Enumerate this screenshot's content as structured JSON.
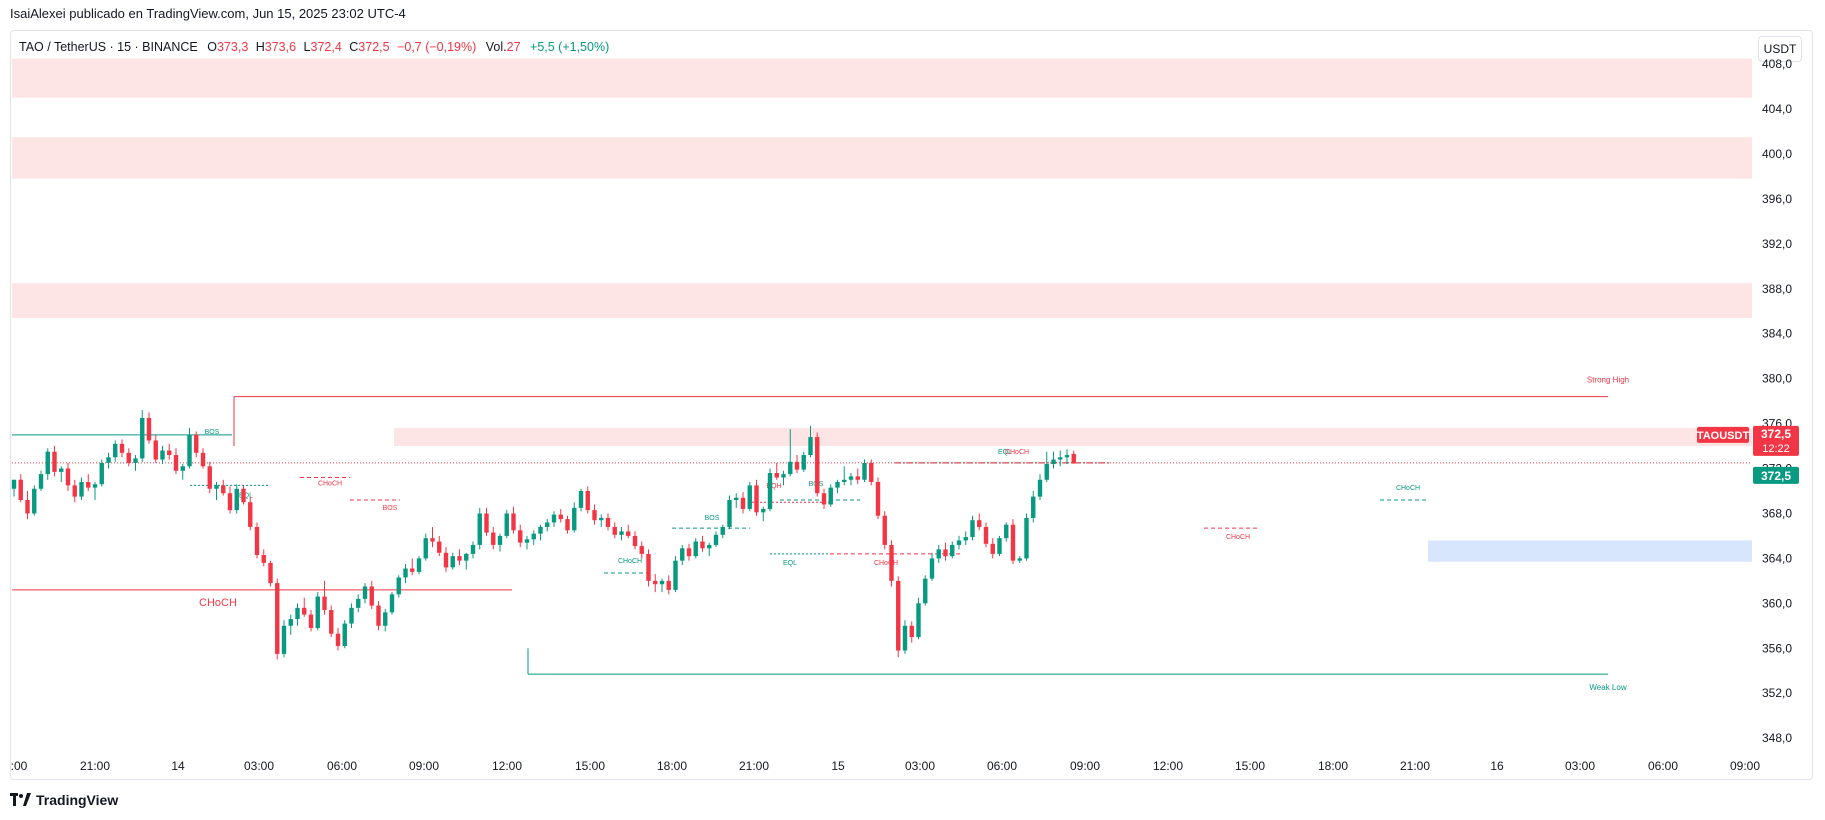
{
  "published_by": "IsaiAlexei publicado en TradingView.com, Jun 15, 2025 23:02 UTC-4",
  "legend": {
    "symbol": "TAO / TetherUS · 15 · BINANCE",
    "o_label": "O",
    "o_value": "373,3",
    "h_label": "H",
    "h_value": "373,6",
    "l_label": "L",
    "l_value": "372,4",
    "c_label": "C",
    "c_value": "372,5",
    "change": "−0,7 (−0,19%)",
    "vol_label": "Vol.",
    "vol_value": "27",
    "vol_change": "+5,5 (+1,50%)"
  },
  "currency_button": "USDT",
  "brand": "TradingView",
  "colors": {
    "up": "#089981",
    "down": "#f23645",
    "supply_zone": "#fde4e5",
    "demand_zone": "#d8e6fd"
  },
  "chart_data": {
    "type": "candlestick",
    "y_ticks": [
      "408,0",
      "404,0",
      "400,0",
      "396,0",
      "392,0",
      "388,0",
      "384,0",
      "380,0",
      "376,0",
      "372,0",
      "368,0",
      "364,0",
      "360,0",
      "356,0",
      "352,0",
      "348,0"
    ],
    "y_tick_values": [
      408,
      404,
      400,
      396,
      392,
      388,
      384,
      380,
      376,
      372,
      368,
      364,
      360,
      356,
      352,
      348
    ],
    "ylim": [
      346.5,
      410.5
    ],
    "x_ticks": [
      ":00",
      "21:00",
      "14",
      "03:00",
      "06:00",
      "09:00",
      "12:00",
      "15:00",
      "18:00",
      "21:00",
      "15",
      "03:00",
      "06:00",
      "09:00",
      "12:00",
      "15:00",
      "18:00",
      "21:00",
      "16",
      "03:00",
      "06:00",
      "09:00"
    ],
    "last_price_label": {
      "symbol": "TAOUSDT",
      "price": "372,5",
      "countdown": "12:22"
    },
    "last_price_marker": "372,5",
    "supply_zones": [
      {
        "low": 405.0,
        "high": 408.5
      },
      {
        "low": 397.8,
        "high": 401.5
      },
      {
        "low": 385.4,
        "high": 388.5
      },
      {
        "low": 374.0,
        "high": 375.6
      }
    ],
    "demand_zones": [
      {
        "low": 363.7,
        "high": 365.6
      }
    ],
    "annotations": [
      {
        "text": "Strong High",
        "price": 378.4
      },
      {
        "text": "Weak Low",
        "price": 353.7
      },
      {
        "text": "CHoCH",
        "price": 361.2
      },
      {
        "text": "BOS",
        "price": 375.0
      },
      {
        "text": "EQL",
        "price": 370.5
      },
      {
        "text": "CHoCH",
        "price": 371.2
      },
      {
        "text": "BOS",
        "price": 369.2
      },
      {
        "text": "CHoCH",
        "price": 362.7
      },
      {
        "text": "BOS",
        "price": 366.7
      },
      {
        "text": "EQH",
        "price": 369.0
      },
      {
        "text": "BOS",
        "price": 369.2
      },
      {
        "text": "EQL",
        "price": 364.4
      },
      {
        "text": "CHoCH",
        "price": 364.4
      },
      {
        "text": "EQL",
        "price": 372.5
      },
      {
        "text": "CHoCH",
        "price": 372.5
      },
      {
        "text": "CHoCH",
        "price": 366.7
      },
      {
        "text": "CHoCH",
        "price": 369.2
      }
    ],
    "candles": [
      [
        370.2,
        371.0,
        369.5,
        371.0
      ],
      [
        371.0,
        371.5,
        369.0,
        369.2
      ],
      [
        369.2,
        370.0,
        367.5,
        368.0
      ],
      [
        368.0,
        370.5,
        367.8,
        370.2
      ],
      [
        370.2,
        371.8,
        370.0,
        371.5
      ],
      [
        371.5,
        373.8,
        371.0,
        373.5
      ],
      [
        373.5,
        374.0,
        371.3,
        371.7
      ],
      [
        371.7,
        372.2,
        370.8,
        372.0
      ],
      [
        372.0,
        372.5,
        370.0,
        370.5
      ],
      [
        370.5,
        371.0,
        369.0,
        369.5
      ],
      [
        369.5,
        371.2,
        369.2,
        370.8
      ],
      [
        370.8,
        371.5,
        370.0,
        370.3
      ],
      [
        370.3,
        370.8,
        369.2,
        370.6
      ],
      [
        370.6,
        372.8,
        370.4,
        372.5
      ],
      [
        372.5,
        373.4,
        372.0,
        373.0
      ],
      [
        373.0,
        374.5,
        372.6,
        374.2
      ],
      [
        374.2,
        374.6,
        373.0,
        373.4
      ],
      [
        373.4,
        373.8,
        372.2,
        372.5
      ],
      [
        372.5,
        373.2,
        371.8,
        372.9
      ],
      [
        372.9,
        377.2,
        372.6,
        376.5
      ],
      [
        376.5,
        377.0,
        374.2,
        374.5
      ],
      [
        374.5,
        375.0,
        372.5,
        372.8
      ],
      [
        372.8,
        374.0,
        372.4,
        373.6
      ],
      [
        373.6,
        374.2,
        372.8,
        373.2
      ],
      [
        373.2,
        373.8,
        371.5,
        371.8
      ],
      [
        371.8,
        372.4,
        371.0,
        372.2
      ],
      [
        372.2,
        375.6,
        372.0,
        375.0
      ],
      [
        375.0,
        375.3,
        373.0,
        373.4
      ],
      [
        373.4,
        373.8,
        372.0,
        372.2
      ],
      [
        372.2,
        372.6,
        369.8,
        370.2
      ],
      [
        370.2,
        370.8,
        369.2,
        370.5
      ],
      [
        370.5,
        371.0,
        369.6,
        369.8
      ],
      [
        369.8,
        370.4,
        368.0,
        368.3
      ],
      [
        368.3,
        370.6,
        368.0,
        370.2
      ],
      [
        370.2,
        370.5,
        368.8,
        369.0
      ],
      [
        369.0,
        369.5,
        366.5,
        366.8
      ],
      [
        366.8,
        367.2,
        364.0,
        364.3
      ],
      [
        364.3,
        364.8,
        363.3,
        363.6
      ],
      [
        363.6,
        363.8,
        361.5,
        361.8
      ],
      [
        361.8,
        362.2,
        355.0,
        355.5
      ],
      [
        355.5,
        358.5,
        355.2,
        358.0
      ],
      [
        358.0,
        359.0,
        357.2,
        358.6
      ],
      [
        358.6,
        360.0,
        358.0,
        359.6
      ],
      [
        359.6,
        360.5,
        358.8,
        359.0
      ],
      [
        359.0,
        359.4,
        357.5,
        357.8
      ],
      [
        357.8,
        361.0,
        357.6,
        360.6
      ],
      [
        360.6,
        362.0,
        359.0,
        359.4
      ],
      [
        359.4,
        359.8,
        357.0,
        357.3
      ],
      [
        357.3,
        357.8,
        355.8,
        356.2
      ],
      [
        356.2,
        358.5,
        356.0,
        358.2
      ],
      [
        358.2,
        360.0,
        357.8,
        359.6
      ],
      [
        359.6,
        360.8,
        359.2,
        360.4
      ],
      [
        360.4,
        361.8,
        360.0,
        361.5
      ],
      [
        361.5,
        362.0,
        359.5,
        359.8
      ],
      [
        359.8,
        360.2,
        357.6,
        358.0
      ],
      [
        358.0,
        359.5,
        357.5,
        359.2
      ],
      [
        359.2,
        361.0,
        359.0,
        360.8
      ],
      [
        360.8,
        362.5,
        360.5,
        362.3
      ],
      [
        362.3,
        363.5,
        361.8,
        363.1
      ],
      [
        363.1,
        364.0,
        362.5,
        362.8
      ],
      [
        362.8,
        364.2,
        362.6,
        364.0
      ],
      [
        364.0,
        366.2,
        363.8,
        365.8
      ],
      [
        365.8,
        366.8,
        365.0,
        365.5
      ],
      [
        365.5,
        366.0,
        364.2,
        364.5
      ],
      [
        364.5,
        365.0,
        362.8,
        363.2
      ],
      [
        363.2,
        364.5,
        363.0,
        364.2
      ],
      [
        364.2,
        364.8,
        363.4,
        363.8
      ],
      [
        363.8,
        364.5,
        363.0,
        364.4
      ],
      [
        364.4,
        365.5,
        364.0,
        365.2
      ],
      [
        365.2,
        368.5,
        364.8,
        368.0
      ],
      [
        368.0,
        368.5,
        366.0,
        366.3
      ],
      [
        366.3,
        366.8,
        364.8,
        365.2
      ],
      [
        365.2,
        366.2,
        364.6,
        366.0
      ],
      [
        366.0,
        368.3,
        365.8,
        368.0
      ],
      [
        368.0,
        368.6,
        366.2,
        366.5
      ],
      [
        366.5,
        367.0,
        365.0,
        365.4
      ],
      [
        365.4,
        366.0,
        364.8,
        365.7
      ],
      [
        365.7,
        366.5,
        365.2,
        366.2
      ],
      [
        366.2,
        367.0,
        365.6,
        366.8
      ],
      [
        366.8,
        367.5,
        366.4,
        367.2
      ],
      [
        367.2,
        368.2,
        366.8,
        367.9
      ],
      [
        367.9,
        368.4,
        367.2,
        367.5
      ],
      [
        367.5,
        367.8,
        366.2,
        366.5
      ],
      [
        366.5,
        369.0,
        366.3,
        368.5
      ],
      [
        368.5,
        370.2,
        368.2,
        370.0
      ],
      [
        370.0,
        370.4,
        368.0,
        368.3
      ],
      [
        368.3,
        368.8,
        367.0,
        367.4
      ],
      [
        367.4,
        367.9,
        366.8,
        367.6
      ],
      [
        367.6,
        368.0,
        366.5,
        366.8
      ],
      [
        366.8,
        367.2,
        365.8,
        366.1
      ],
      [
        366.1,
        366.8,
        365.6,
        366.4
      ],
      [
        366.4,
        367.0,
        365.8,
        366.0
      ],
      [
        366.0,
        366.4,
        364.8,
        365.1
      ],
      [
        365.1,
        365.5,
        364.0,
        364.4
      ],
      [
        364.4,
        364.8,
        361.5,
        362.0
      ],
      [
        362.0,
        362.6,
        361.0,
        361.7
      ],
      [
        361.7,
        362.2,
        361.0,
        362.0
      ],
      [
        362.0,
        362.5,
        360.8,
        361.2
      ],
      [
        361.2,
        364.2,
        361.0,
        363.8
      ],
      [
        363.8,
        365.2,
        363.4,
        364.9
      ],
      [
        364.9,
        365.3,
        363.8,
        364.2
      ],
      [
        364.2,
        365.8,
        364.0,
        365.5
      ],
      [
        365.5,
        366.0,
        364.6,
        364.9
      ],
      [
        364.9,
        365.4,
        364.2,
        365.2
      ],
      [
        365.2,
        366.4,
        365.0,
        366.1
      ],
      [
        366.1,
        367.0,
        365.8,
        366.8
      ],
      [
        366.8,
        369.6,
        366.6,
        369.2
      ],
      [
        369.2,
        369.8,
        368.5,
        369.4
      ],
      [
        369.4,
        369.9,
        368.0,
        368.4
      ],
      [
        368.4,
        370.8,
        368.2,
        370.5
      ],
      [
        370.5,
        371.0,
        367.8,
        368.1
      ],
      [
        368.1,
        368.6,
        367.3,
        368.4
      ],
      [
        368.4,
        372.0,
        368.2,
        371.6
      ],
      [
        371.6,
        372.5,
        371.0,
        371.2
      ],
      [
        371.2,
        371.8,
        370.5,
        371.5
      ],
      [
        371.5,
        375.5,
        371.3,
        372.6
      ],
      [
        372.6,
        373.2,
        371.6,
        371.9
      ],
      [
        371.9,
        373.5,
        371.7,
        373.2
      ],
      [
        373.2,
        375.8,
        373.0,
        374.8
      ],
      [
        374.8,
        375.2,
        369.5,
        369.8
      ],
      [
        369.8,
        370.2,
        368.4,
        368.8
      ],
      [
        368.8,
        370.6,
        368.6,
        370.3
      ],
      [
        370.3,
        371.0,
        369.8,
        370.8
      ],
      [
        370.8,
        372.2,
        370.5,
        371.0
      ],
      [
        371.0,
        371.6,
        370.5,
        371.3
      ],
      [
        371.3,
        372.0,
        370.6,
        371.0
      ],
      [
        371.0,
        372.8,
        370.8,
        372.5
      ],
      [
        372.5,
        372.8,
        370.5,
        370.8
      ],
      [
        370.8,
        371.2,
        367.5,
        367.8
      ],
      [
        367.8,
        368.2,
        364.8,
        365.2
      ],
      [
        365.2,
        365.6,
        361.5,
        362.0
      ],
      [
        362.0,
        362.4,
        355.2,
        355.8
      ],
      [
        355.8,
        358.5,
        355.5,
        358.0
      ],
      [
        358.0,
        358.4,
        356.5,
        357.0
      ],
      [
        357.0,
        360.5,
        356.8,
        360.0
      ],
      [
        360.0,
        362.5,
        359.8,
        362.2
      ],
      [
        362.2,
        364.5,
        362.0,
        364.0
      ],
      [
        364.0,
        365.2,
        363.6,
        364.8
      ],
      [
        364.8,
        365.4,
        363.8,
        364.2
      ],
      [
        364.2,
        365.5,
        364.0,
        365.2
      ],
      [
        365.2,
        366.0,
        364.8,
        365.6
      ],
      [
        365.6,
        366.4,
        365.2,
        365.9
      ],
      [
        365.9,
        367.8,
        365.6,
        367.4
      ],
      [
        367.4,
        368.0,
        366.5,
        366.8
      ],
      [
        366.8,
        367.2,
        365.0,
        365.3
      ],
      [
        365.3,
        365.8,
        364.0,
        364.4
      ],
      [
        364.4,
        366.0,
        364.2,
        365.8
      ],
      [
        365.8,
        367.2,
        365.5,
        367.0
      ],
      [
        367.0,
        367.5,
        363.5,
        363.8
      ],
      [
        363.8,
        364.2,
        363.6,
        364.0
      ],
      [
        364.0,
        368.0,
        363.8,
        367.6
      ],
      [
        367.6,
        370.0,
        367.2,
        369.5
      ],
      [
        369.5,
        371.5,
        369.2,
        371.0
      ],
      [
        371.0,
        373.5,
        370.8,
        372.4
      ],
      [
        372.4,
        373.5,
        372.0,
        372.8
      ],
      [
        372.8,
        373.6,
        372.2,
        373.0
      ],
      [
        373.0,
        373.7,
        372.4,
        373.2
      ],
      [
        373.3,
        373.6,
        372.4,
        372.5
      ]
    ]
  }
}
